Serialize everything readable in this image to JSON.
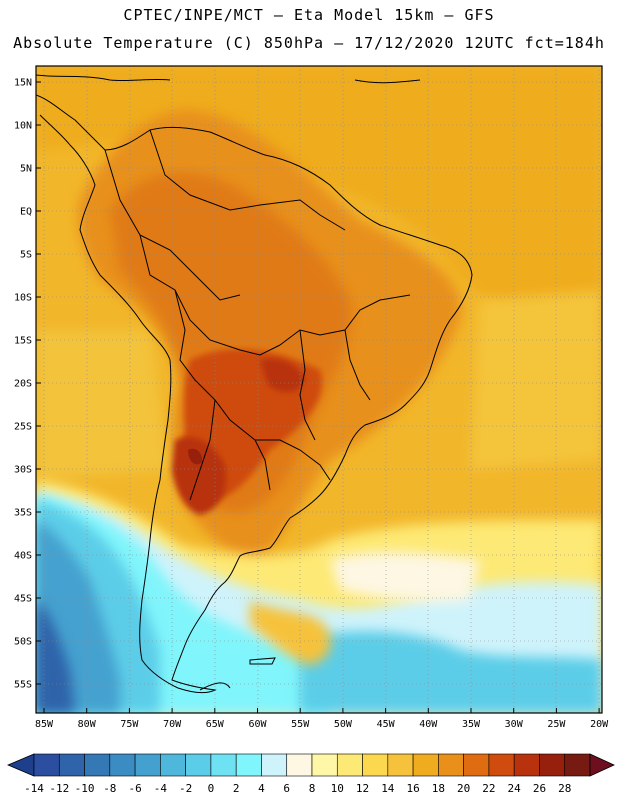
{
  "header": {
    "line1": "CPTEC/INPE/MCT –  Eta Model 15km – GFS",
    "line2": "Absolute Temperature (C) 850hPa – 17/12/2020 12UTC fct=184h"
  },
  "map": {
    "lat_labels": [
      "15N",
      "10N",
      "5N",
      "EQ",
      "5S",
      "10S",
      "15S",
      "20S",
      "25S",
      "30S",
      "35S",
      "40S",
      "45S",
      "50S",
      "55S"
    ],
    "lon_labels": [
      "85W",
      "80W",
      "75W",
      "70W",
      "65W",
      "60W",
      "55W",
      "50W",
      "45W",
      "40W",
      "35W",
      "30W",
      "25W",
      "20W"
    ]
  },
  "colorbar": {
    "labels": [
      "-14",
      "-12",
      "-10",
      "-8",
      "-6",
      "-4",
      "-2",
      "0",
      "2",
      "4",
      "6",
      "8",
      "10",
      "12",
      "14",
      "16",
      "18",
      "20",
      "22",
      "24",
      "26",
      "28"
    ],
    "colors": [
      "#2b4ea0",
      "#2f63aa",
      "#3478b5",
      "#3b8cc2",
      "#44a1cf",
      "#4fb7dc",
      "#5ccde8",
      "#6ee2f2",
      "#80f5fb",
      "#cff3fb",
      "#fdf7e3",
      "#fff7a8",
      "#fde975",
      "#fbd84e",
      "#f6c23b",
      "#efac1f",
      "#e8901a",
      "#e06c12",
      "#cf4b0e",
      "#b8320d",
      "#96200c",
      "#761a12"
    ],
    "under_color": "#1e3f8c",
    "over_color": "#6e0f20"
  }
}
